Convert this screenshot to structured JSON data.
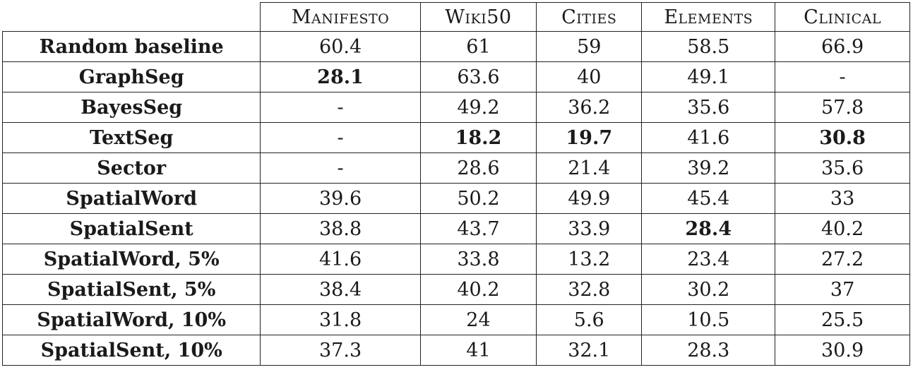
{
  "table": {
    "columns": [
      "",
      "Manifesto",
      "Wiki50",
      "Cities",
      "Elements",
      "Clinical"
    ],
    "rows": [
      {
        "label": "Random baseline",
        "values": [
          "60.4",
          "61",
          "59",
          "58.5",
          "66.9"
        ],
        "bold": [
          false,
          false,
          false,
          false,
          false
        ],
        "group_start": false
      },
      {
        "label": "GraphSeg",
        "values": [
          "28.1",
          "63.6",
          "40",
          "49.1",
          "-"
        ],
        "bold": [
          true,
          false,
          false,
          false,
          false
        ],
        "group_start": false
      },
      {
        "label": "BayesSeg",
        "values": [
          "-",
          "49.2",
          "36.2",
          "35.6",
          "57.8"
        ],
        "bold": [
          false,
          false,
          false,
          false,
          false
        ],
        "group_start": false
      },
      {
        "label": "TextSeg",
        "values": [
          "-",
          "18.2",
          "19.7",
          "41.6",
          "30.8"
        ],
        "bold": [
          false,
          true,
          true,
          false,
          true
        ],
        "group_start": false
      },
      {
        "label": "Sector",
        "values": [
          "-",
          "28.6",
          "21.4",
          "39.2",
          "35.6"
        ],
        "bold": [
          false,
          false,
          false,
          false,
          false
        ],
        "group_start": false
      },
      {
        "label": "SpatialWord",
        "values": [
          "39.6",
          "50.2",
          "49.9",
          "45.4",
          "33"
        ],
        "bold": [
          false,
          false,
          false,
          false,
          false
        ],
        "group_start": false
      },
      {
        "label": "SpatialSent",
        "values": [
          "38.8",
          "43.7",
          "33.9",
          "28.4",
          "40.2"
        ],
        "bold": [
          false,
          false,
          false,
          true,
          false
        ],
        "group_start": false
      },
      {
        "label": "SpatialWord, 5%",
        "values": [
          "41.6",
          "33.8",
          "13.2",
          "23.4",
          "27.2"
        ],
        "bold": [
          false,
          false,
          false,
          false,
          false
        ],
        "group_start": true
      },
      {
        "label": "SpatialSent, 5%",
        "values": [
          "38.4",
          "40.2",
          "32.8",
          "30.2",
          "37"
        ],
        "bold": [
          false,
          false,
          false,
          false,
          false
        ],
        "group_start": false
      },
      {
        "label": "SpatialWord, 10%",
        "values": [
          "31.8",
          "24",
          "5.6",
          "10.5",
          "25.5"
        ],
        "bold": [
          false,
          false,
          false,
          false,
          false
        ],
        "group_start": true
      },
      {
        "label": "SpatialSent, 10%",
        "values": [
          "37.3",
          "41",
          "32.1",
          "28.3",
          "30.9"
        ],
        "bold": [
          false,
          false,
          false,
          false,
          false
        ],
        "group_start": false
      }
    ]
  }
}
